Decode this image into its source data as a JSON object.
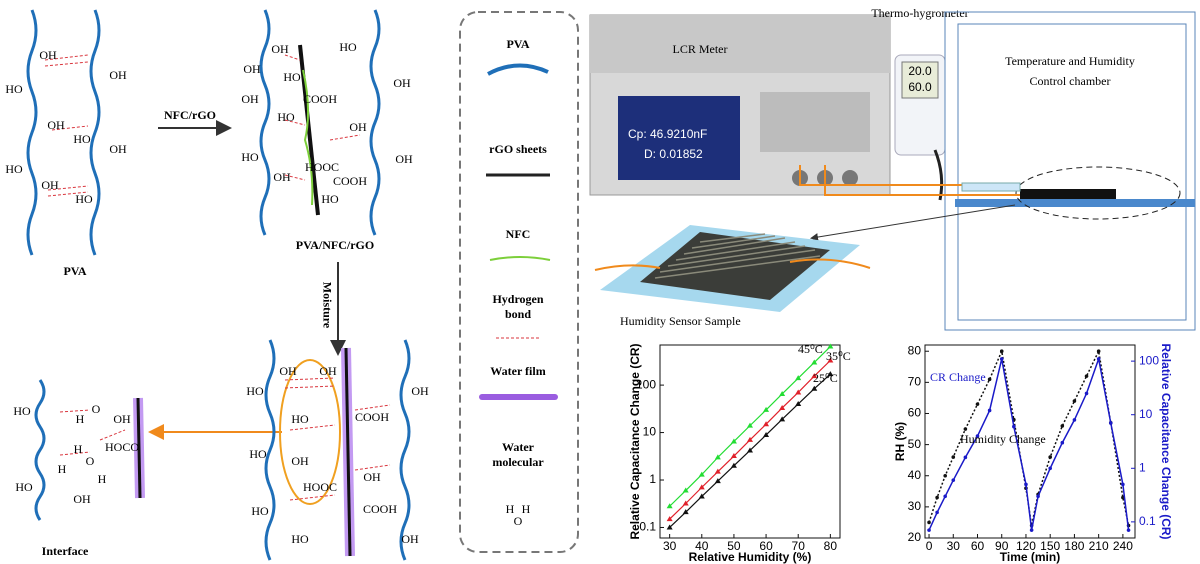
{
  "diagram": {
    "pva_panel": {
      "label": "PVA",
      "groups": [
        "OH",
        "OH",
        "HO",
        "OH",
        "HO",
        "OH",
        "HO",
        "OH",
        "HO"
      ]
    },
    "arrow_label": "NFC/rGO",
    "composite_panel": {
      "label": "PVA/NFC/rGO",
      "groups": [
        "OH",
        "HO",
        "OH",
        "OH",
        "COOH",
        "HO",
        "HO",
        "OH",
        "OH",
        "HOOC",
        "OH",
        "HO",
        "COOH",
        "OH",
        "HO"
      ]
    },
    "moisture_label": "Moisture",
    "moisture_panel": {
      "groups": [
        "OH",
        "OH",
        "HO",
        "OH",
        "COOH",
        "HO",
        "HO",
        "OH",
        "HOOC",
        "OH",
        "HO",
        "COOH",
        "OH",
        "HO"
      ]
    },
    "interface_panel": {
      "label": "Interface",
      "groups": [
        "HO",
        "O",
        "H",
        "H",
        "H",
        "O",
        "H",
        "HO",
        "OH",
        "HOCO",
        "OH"
      ]
    }
  },
  "legend": {
    "items": [
      {
        "label": "PVA",
        "color": "#1f6fb8"
      },
      {
        "label": "rGO sheets",
        "color": "#222222"
      },
      {
        "label": "NFC",
        "color": "#7ccf3a"
      },
      {
        "label": "Hydrogen bond",
        "color": "#d9363e"
      },
      {
        "label": "Water film",
        "color": "#9a5de0"
      },
      {
        "label": "Water molecular",
        "color": "#222222"
      }
    ],
    "water_atoms": [
      "H",
      "H",
      "O"
    ]
  },
  "setup": {
    "meter": "LCR Meter",
    "hygrometer": "Thermo-hygrometer",
    "chamber": "Temperature and Humidity Control chamber",
    "sample": "Humidity Sensor Sample",
    "screen_cp": "Cp: 46.9210nF",
    "screen_d": "D: 0.01852",
    "hyg_temp": "20.0",
    "hyg_rh": "60.0"
  },
  "chart_data": [
    {
      "type": "scatter",
      "x_label": "Relative Humidity (%)",
      "y_label": "Relative Capacitance Change (CR)",
      "x": [
        30,
        35,
        40,
        45,
        50,
        55,
        60,
        65,
        70,
        75,
        80
      ],
      "series": [
        {
          "name": "25⁰C",
          "color": "#111111",
          "values": [
            0.1,
            0.21,
            0.45,
            0.95,
            2,
            4.2,
            8.9,
            19,
            40,
            84,
            170
          ]
        },
        {
          "name": "35⁰C",
          "color": "#e0202a",
          "values": [
            0.15,
            0.32,
            0.7,
            1.5,
            3.2,
            7,
            15,
            33,
            70,
            155,
            330
          ]
        },
        {
          "name": "45⁰C",
          "color": "#22dd33",
          "values": [
            0.28,
            0.6,
            1.3,
            3,
            6.5,
            14,
            30,
            65,
            140,
            300,
            650
          ]
        }
      ],
      "xlim": [
        27,
        83
      ],
      "xticks": [
        30,
        40,
        50,
        60,
        70,
        80
      ],
      "ylim": [
        0.06,
        700
      ],
      "yticks": [
        0.1,
        1,
        10,
        100
      ],
      "ylog": true
    },
    {
      "type": "line",
      "x_label": "Time (min)",
      "y_label": "RH (%)",
      "y2_label": "Relative Capacitance Change (CR)",
      "x": [
        0,
        10,
        20,
        30,
        45,
        60,
        75,
        90,
        105,
        120,
        127,
        135,
        150,
        165,
        180,
        195,
        210,
        225,
        240,
        247
      ],
      "series": [
        {
          "name": "Humidity Change",
          "color": "#111111",
          "values": [
            25,
            33,
            40,
            46,
            55,
            63,
            71,
            80,
            58,
            36,
            24,
            34,
            46,
            56,
            64,
            72,
            80,
            57,
            33,
            24
          ]
        },
        {
          "name": "CR Change",
          "color": "#1a1ac8",
          "axis": "y2",
          "values": [
            0.07,
            0.15,
            0.3,
            0.6,
            1.6,
            4,
            12,
            110,
            6,
            0.5,
            0.07,
            0.3,
            1,
            3,
            8,
            25,
            110,
            7,
            0.5,
            0.07
          ]
        }
      ],
      "xlim": [
        -5,
        255
      ],
      "xticks": [
        0,
        30,
        60,
        90,
        120,
        150,
        180,
        210,
        240
      ],
      "ylim": [
        20,
        82
      ],
      "yticks": [
        20,
        30,
        40,
        50,
        60,
        70,
        80
      ],
      "y2lim": [
        0.05,
        200
      ],
      "y2ticks": [
        0.1,
        1,
        10,
        100
      ],
      "y2log": true
    }
  ]
}
